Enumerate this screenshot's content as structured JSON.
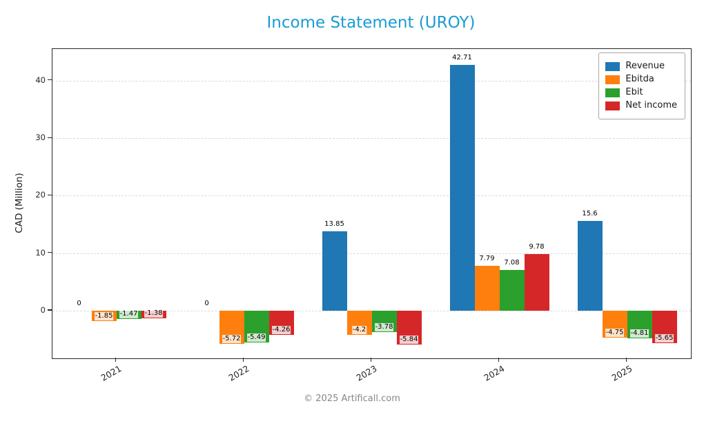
{
  "footer": "© 2025 Artificall.com",
  "colors": {
    "title": "#189cd4",
    "grid": "#d9d9d9",
    "spine": "#262626",
    "footer_text": "#878787"
  },
  "chart_data": {
    "type": "bar",
    "title": "Income Statement (UROY)",
    "xlabel": "",
    "ylabel": "CAD (Million)",
    "categories": [
      "2021",
      "2022",
      "2023",
      "2024",
      "2025"
    ],
    "series": [
      {
        "name": "Revenue",
        "color": "#1f77b4",
        "values": [
          0,
          0,
          13.85,
          42.71,
          15.6
        ]
      },
      {
        "name": "Ebitda",
        "color": "#ff7f0e",
        "values": [
          -1.85,
          -5.72,
          -4.2,
          7.79,
          -4.75
        ]
      },
      {
        "name": "Ebit",
        "color": "#2ca02c",
        "values": [
          -1.47,
          -5.49,
          -3.78,
          7.08,
          -4.81
        ]
      },
      {
        "name": "Net income",
        "color": "#d62728",
        "values": [
          -1.38,
          -4.26,
          -5.84,
          9.78,
          -5.65
        ]
      }
    ],
    "yticks": [
      0,
      10,
      20,
      30,
      40
    ],
    "ylim": [
      -8.3,
      45.5
    ],
    "grid": true,
    "grid_style": "dashed",
    "legend_position": "upper right",
    "bar_value_labels_shown": true
  }
}
